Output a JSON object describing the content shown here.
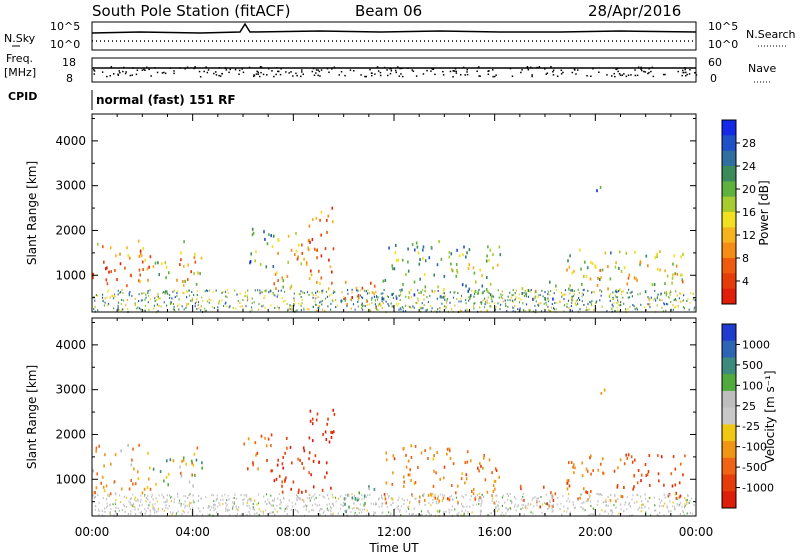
{
  "header": {
    "station": "South Pole Station (fitACF)",
    "beam": "Beam 06",
    "date": "28/Apr/2016"
  },
  "side_labels": {
    "nsky": "N.Sky",
    "freq_line1": "Freq.",
    "freq_line2": "[MHz]",
    "cpid": "CPID",
    "nsearch": "N.Search",
    "nave": "Nave"
  },
  "cpid_text": "normal (fast) 151 RF",
  "x_axis": {
    "label": "Time UT",
    "ticks": [
      "00:00",
      "04:00",
      "08:00",
      "12:00",
      "16:00",
      "20:00",
      "00:00"
    ]
  },
  "noise_panel": {
    "left_ticks": [
      "10^5",
      "10^0"
    ],
    "right_ticks": [
      "10^5",
      "10^0"
    ]
  },
  "freq_panel": {
    "left_ticks": [
      "18",
      "8"
    ],
    "right_ticks": [
      "60",
      "0"
    ]
  },
  "power_panel": {
    "ylabel": "Slant Range [km]",
    "yticks": [
      "4000",
      "3000",
      "2000",
      "1000"
    ],
    "colorbar_label": "Power [dB]",
    "colorbar_ticks": [
      "28",
      "24",
      "20",
      "16",
      "12",
      "8",
      "4"
    ],
    "colors": [
      "#1428e6",
      "#2050c8",
      "#2f6e9e",
      "#3a8a5a",
      "#60b040",
      "#a8cc30",
      "#f0e020",
      "#f5b41e",
      "#f58c14",
      "#f05a0f",
      "#e63c0a",
      "#e01e0a"
    ]
  },
  "velocity_panel": {
    "ylabel": "Slant Range [km]",
    "yticks": [
      "4000",
      "3000",
      "2000",
      "1000"
    ],
    "colorbar_label": "Velocity [m s⁻¹]",
    "colorbar_ticks": [
      "1000",
      "500",
      "100",
      "25",
      "-25",
      "-100",
      "-500",
      "-1000"
    ],
    "colors": [
      "#1e3ccd",
      "#2d64b4",
      "#3c8c7d",
      "#50aa3c",
      "#bebebe",
      "#c8c8c8",
      "#f0c814",
      "#f09614",
      "#f06414",
      "#e63c0a",
      "#dc1e0a"
    ]
  },
  "chart_data": {
    "type": "heatmap",
    "title": "South Pole Station (fitACF)   Beam 06   28/Apr/2016",
    "xlabel": "Time UT",
    "ylabel": "Slant Range [km]",
    "x_ticks": [
      "00:00",
      "04:00",
      "08:00",
      "12:00",
      "16:00",
      "20:00",
      "00:00"
    ],
    "xlim_hours": [
      0,
      24
    ],
    "ylim_km": [
      180,
      4600
    ],
    "y_ticks_km": [
      1000,
      2000,
      3000,
      4000
    ],
    "power_colorbar_db": [
      4,
      8,
      12,
      16,
      20,
      24,
      28
    ],
    "velocity_colorbar_ms": [
      -1000,
      -500,
      -100,
      -25,
      25,
      100,
      500,
      1000
    ],
    "echo_regions": [
      {
        "t_start": 0.0,
        "t_end": 2.3,
        "r_min": 700,
        "r_max": 1800,
        "power_db": 26,
        "velocity_ms": -200
      },
      {
        "t_start": 2.3,
        "t_end": 3.2,
        "r_min": 900,
        "r_max": 1500,
        "power_db": 14,
        "velocity_ms": 100
      },
      {
        "t_start": 3.2,
        "t_end": 4.4,
        "r_min": 800,
        "r_max": 1800,
        "power_db": 22,
        "velocity_ms": -100
      },
      {
        "t_start": 6.0,
        "t_end": 7.2,
        "r_min": 1200,
        "r_max": 2100,
        "power_db": 12,
        "velocity_ms": -400
      },
      {
        "t_start": 7.2,
        "t_end": 8.6,
        "r_min": 700,
        "r_max": 2100,
        "power_db": 22,
        "velocity_ms": -700
      },
      {
        "t_start": 8.6,
        "t_end": 9.6,
        "r_min": 700,
        "r_max": 2600,
        "power_db": 28,
        "velocity_ms": -800
      },
      {
        "t_start": 10.0,
        "t_end": 11.5,
        "r_min": 300,
        "r_max": 900,
        "power_db": 28,
        "velocity_ms": 200
      },
      {
        "t_start": 11.5,
        "t_end": 16.2,
        "r_min": 500,
        "r_max": 1800,
        "power_db": 14,
        "velocity_ms": -300
      },
      {
        "t_start": 17.0,
        "t_end": 18.5,
        "r_min": 400,
        "r_max": 900,
        "power_db": 10,
        "velocity_ms": -500
      },
      {
        "t_start": 18.8,
        "t_end": 21.0,
        "r_min": 500,
        "r_max": 1600,
        "power_db": 18,
        "velocity_ms": -400
      },
      {
        "t_start": 21.0,
        "t_end": 23.6,
        "r_min": 600,
        "r_max": 1600,
        "power_db": 20,
        "velocity_ms": -600
      },
      {
        "t_start": 20.0,
        "t_end": 20.4,
        "r_min": 2800,
        "r_max": 3100,
        "power_db": 8,
        "velocity_ms": -50
      }
    ]
  }
}
